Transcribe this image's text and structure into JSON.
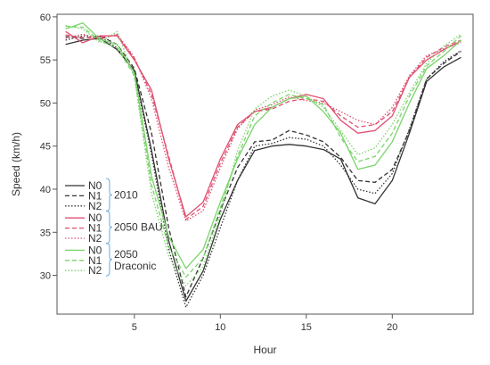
{
  "chart_data": {
    "type": "line",
    "xlabel": "Hour",
    "ylabel": "Speed (km/h)",
    "xlim": [
      0.5,
      24.7
    ],
    "ylim": [
      25.5,
      60.3
    ],
    "x_ticks": [
      5,
      10,
      15,
      20
    ],
    "y_ticks": [
      30,
      35,
      40,
      45,
      50,
      55,
      60
    ],
    "grid": false,
    "x": [
      1,
      2,
      3,
      4,
      5,
      6,
      7,
      8,
      9,
      10,
      11,
      12,
      13,
      14,
      15,
      16,
      17,
      18,
      19,
      20,
      21,
      22,
      23,
      24
    ],
    "series": [
      {
        "name": "N0",
        "group": "2010",
        "color": "#333333",
        "dash": "solid",
        "values": [
          56.8,
          57.3,
          57.5,
          56.2,
          53.8,
          44.5,
          34.0,
          27.0,
          30.5,
          36.5,
          41.0,
          44.5,
          45.0,
          45.2,
          45.0,
          44.6,
          43.5,
          39.0,
          38.3,
          41.0,
          46.5,
          52.5,
          54.2,
          55.3
        ]
      },
      {
        "name": "N1",
        "group": "2010",
        "color": "#333333",
        "dash": "dashed",
        "values": [
          57.7,
          57.5,
          57.8,
          56.8,
          54.0,
          46.5,
          35.5,
          27.5,
          32.0,
          37.5,
          42.5,
          45.5,
          45.7,
          46.8,
          46.3,
          45.5,
          43.7,
          41.0,
          40.8,
          42.3,
          46.8,
          52.8,
          54.6,
          56.0
        ]
      },
      {
        "name": "N2",
        "group": "2010",
        "color": "#333333",
        "dash": "dotted",
        "values": [
          57.3,
          57.8,
          57.7,
          56.4,
          53.6,
          44.0,
          33.0,
          26.3,
          30.0,
          35.5,
          41.0,
          45.0,
          45.3,
          46.0,
          45.8,
          45.0,
          42.8,
          40.0,
          39.5,
          41.8,
          47.0,
          52.8,
          54.8,
          56.1
        ]
      },
      {
        "name": "N0",
        "group": "2050 BAU",
        "color": "#e05070",
        "dash": "solid",
        "values": [
          58.3,
          57.0,
          57.8,
          57.8,
          55.0,
          51.5,
          43.5,
          36.8,
          38.5,
          43.5,
          47.5,
          49.0,
          49.5,
          50.5,
          51.0,
          50.5,
          48.0,
          46.5,
          46.8,
          48.5,
          53.0,
          55.0,
          56.2,
          57.2
        ]
      },
      {
        "name": "N1",
        "group": "2050 BAU",
        "color": "#e05070",
        "dash": "dashed",
        "values": [
          57.9,
          57.6,
          57.6,
          57.9,
          55.2,
          51.0,
          43.8,
          36.5,
          38.0,
          43.0,
          47.2,
          49.0,
          49.3,
          50.2,
          50.5,
          50.2,
          48.5,
          47.2,
          47.5,
          49.0,
          53.0,
          55.3,
          56.5,
          57.3
        ]
      },
      {
        "name": "N2",
        "group": "2050 BAU",
        "color": "#e05070",
        "dash": "dotted",
        "values": [
          57.5,
          58.0,
          57.4,
          58.0,
          55.3,
          50.5,
          42.5,
          36.3,
          37.5,
          42.5,
          47.0,
          49.2,
          49.8,
          50.7,
          50.3,
          50.0,
          49.0,
          48.0,
          47.5,
          49.5,
          53.2,
          55.5,
          56.3,
          57.0
        ]
      },
      {
        "name": "N0",
        "group": "2050 Draconic",
        "color": "#7ad46a",
        "dash": "solid",
        "values": [
          58.6,
          59.3,
          57.4,
          56.8,
          53.5,
          41.5,
          34.5,
          30.8,
          33.0,
          38.5,
          43.5,
          47.5,
          49.5,
          50.5,
          50.8,
          49.0,
          46.5,
          42.3,
          42.8,
          45.5,
          50.0,
          54.0,
          55.5,
          57.3
        ]
      },
      {
        "name": "N1",
        "group": "2050 Draconic",
        "color": "#7ad46a",
        "dash": "dashed",
        "values": [
          58.9,
          58.8,
          57.2,
          56.4,
          53.2,
          40.5,
          33.3,
          29.8,
          32.0,
          37.8,
          43.8,
          48.5,
          50.0,
          51.0,
          50.5,
          49.8,
          46.0,
          43.2,
          43.8,
          46.5,
          50.8,
          54.3,
          56.0,
          57.8
        ]
      },
      {
        "name": "N2",
        "group": "2050 Draconic",
        "color": "#7ad46a",
        "dash": "dotted",
        "values": [
          59.0,
          58.6,
          57.0,
          58.3,
          53.0,
          39.5,
          32.2,
          28.8,
          31.0,
          37.0,
          44.5,
          49.3,
          50.8,
          51.5,
          50.8,
          49.5,
          46.8,
          44.0,
          44.8,
          47.5,
          51.2,
          54.6,
          56.6,
          58.0
        ]
      }
    ],
    "legend": {
      "placement": "bottom-left",
      "groups": [
        {
          "label": "2010",
          "color": "#333333",
          "entries": [
            "N0",
            "N1",
            "N2"
          ]
        },
        {
          "label": "2050 BAU",
          "color": "#e05070",
          "entries": [
            "N0",
            "N1",
            "N2"
          ]
        },
        {
          "label": "2050\nDraconic",
          "color": "#7ad46a",
          "entries": [
            "N0",
            "N1",
            "N2"
          ]
        }
      ],
      "brace_color": "#6aaad8"
    }
  }
}
